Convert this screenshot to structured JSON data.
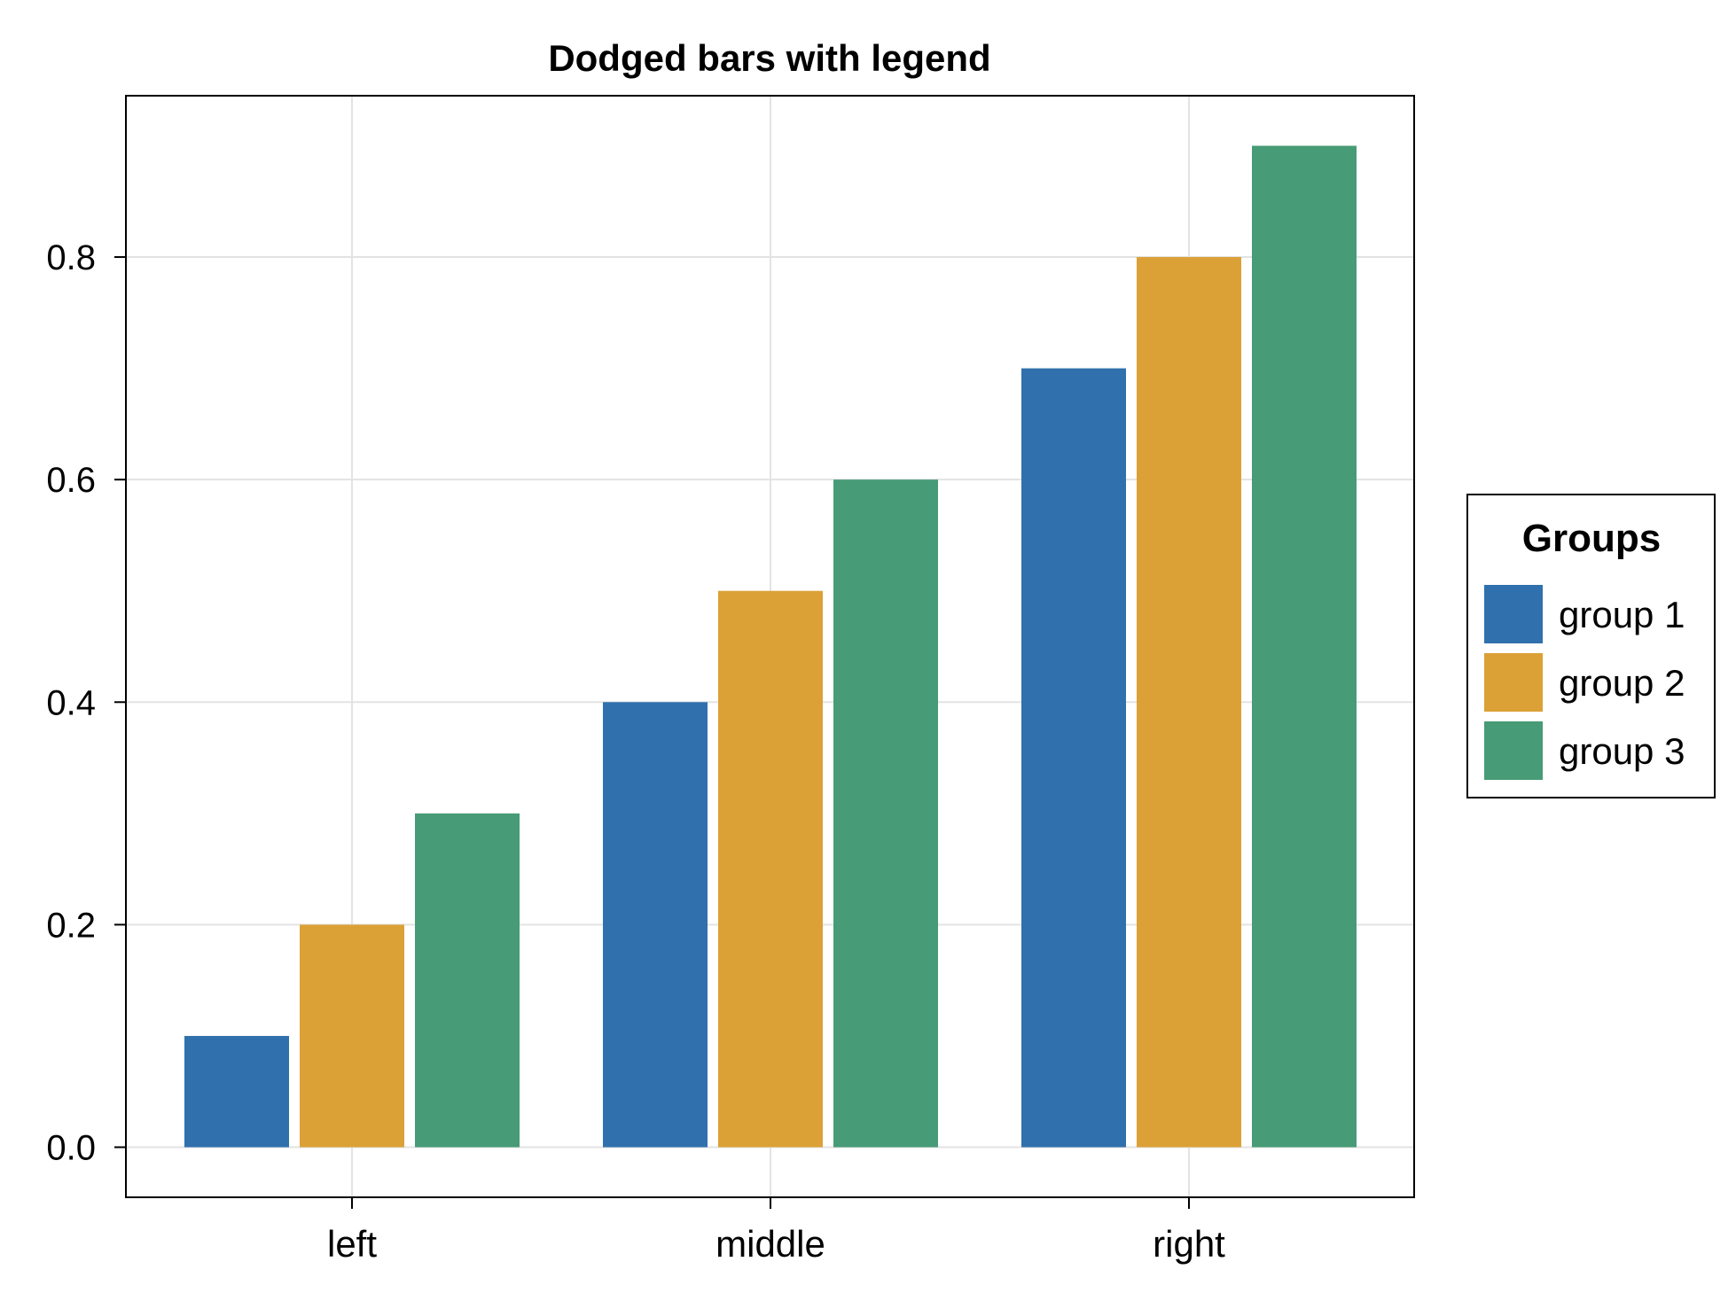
{
  "chart_data": {
    "type": "bar",
    "title": "Dodged bars with legend",
    "xlabel": "",
    "ylabel": "",
    "categories": [
      "left",
      "middle",
      "right"
    ],
    "series": [
      {
        "name": "group 1",
        "color": "#3070AD",
        "values": [
          0.1,
          0.4,
          0.7
        ]
      },
      {
        "name": "group 2",
        "color": "#DBA136",
        "values": [
          0.2,
          0.5,
          0.8
        ]
      },
      {
        "name": "group 3",
        "color": "#479B76",
        "values": [
          0.3,
          0.6,
          0.9
        ]
      }
    ],
    "ylim": [
      -0.045,
      0.945
    ],
    "yticks": [
      "0.0",
      "0.2",
      "0.4",
      "0.6",
      "0.8"
    ],
    "grid": true,
    "legend": {
      "title": "Groups",
      "placement": "right"
    }
  }
}
